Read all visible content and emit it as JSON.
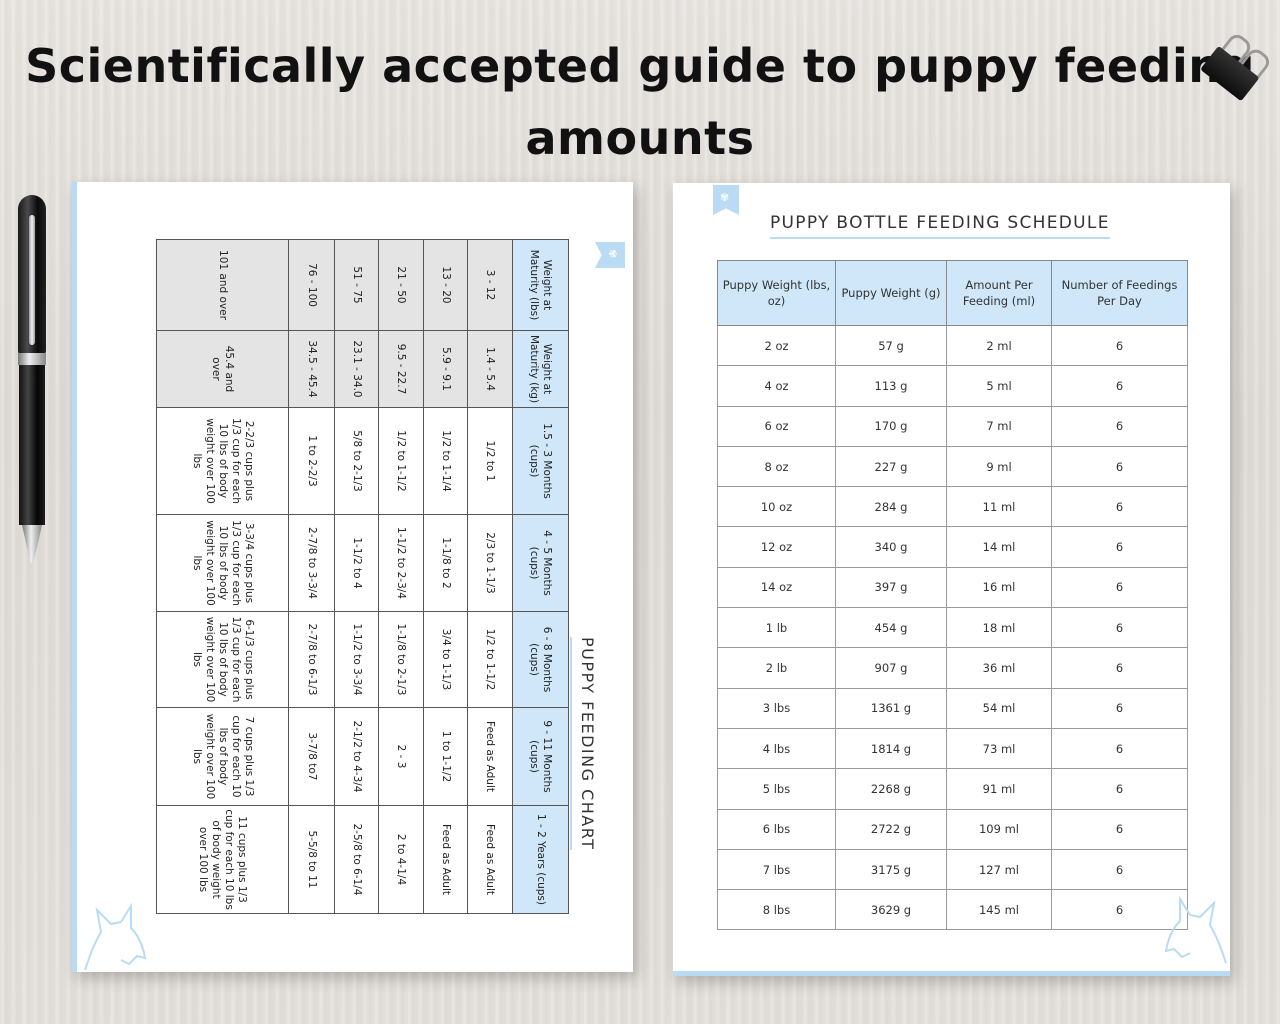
{
  "headline": "Scientifically accepted guide to puppy feeding amounts",
  "left_page": {
    "title": "PUPPY FEEDING CHART",
    "headers": [
      "Weight at Maturity (lbs)",
      "Weight at Maturity (kg)",
      "1.5 - 3 Months (cups)",
      "4 - 5 Months (cups)",
      "6 - 8 Months (cups)",
      "9 - 11 Months (cups)",
      "1 - 2 Years (cups)"
    ],
    "rows": [
      [
        "3 - 12",
        "1.4 - 5.4",
        "1/2 to 1",
        "2/3 to 1-1/3",
        "1/2 to 1-1/2",
        "Feed as Adult",
        "Feed as Adult"
      ],
      [
        "13 - 20",
        "5.9 - 9.1",
        "1/2 to 1-1/4",
        "1-1/8 to 2",
        "3/4 to 1-1/3",
        "1 to 1-1/2",
        "Feed as Adult"
      ],
      [
        "21 - 50",
        "9.5 - 22.7",
        "1/2 to 1-1/2",
        "1-1/2 to 2-3/4",
        "1-1/8 to 2-1/3",
        "2 - 3",
        "2 to 4-1/4"
      ],
      [
        "51 - 75",
        "23.1 - 34.0",
        "5/8 to 2-1/3",
        "1-1/2 to 4",
        "1-1/2 to 3-3/4",
        "2-1/2 to 4-3/4",
        "2-5/8 to 6-1/4"
      ],
      [
        "76 - 100",
        "34.5 - 45.4",
        "1 to 2-2/3",
        "2-7/8 to 3-3/4",
        "2-7/8 to 6-1/3",
        "3-7/8 to7",
        "5-5/8 to 11"
      ],
      [
        "101 and over",
        "45.4 and over",
        "2-2/3 cups plus 1/3 cup for each 10 lbs of body weight over 100 lbs",
        "3-3/4 cups plus 1/3 cup for each 10 lbs of body weight over 100 lbs",
        "6-1/3 cups plus 1/3 cup for each 10 lbs of body weight over 100 lbs",
        "7 cups plus 1/3 cup for each 10 lbs of body weight over 100 lbs",
        "11 cups plus 1/3 cup for each 10 lbs of body weight over 100 lbs"
      ]
    ]
  },
  "right_page": {
    "title": "PUPPY BOTTLE FEEDING SCHEDULE",
    "headers": [
      "Puppy Weight (lbs, oz)",
      "Puppy Weight (g)",
      "Amount Per Feeding (ml)",
      "Number of Feedings Per Day"
    ],
    "rows": [
      [
        "2 oz",
        "57 g",
        "2 ml",
        "6"
      ],
      [
        "4 oz",
        "113 g",
        "5 ml",
        "6"
      ],
      [
        "6 oz",
        "170 g",
        "7 ml",
        "6"
      ],
      [
        "8 oz",
        "227 g",
        "9 ml",
        "6"
      ],
      [
        "10 oz",
        "284 g",
        "11 ml",
        "6"
      ],
      [
        "12 oz",
        "340 g",
        "14 ml",
        "6"
      ],
      [
        "14 oz",
        "397 g",
        "16 ml",
        "6"
      ],
      [
        "1 lb",
        "454 g",
        "18 ml",
        "6"
      ],
      [
        "2 lb",
        "907 g",
        "36 ml",
        "6"
      ],
      [
        "3 lbs",
        "1361 g",
        "54 ml",
        "6"
      ],
      [
        "4 lbs",
        "1814 g",
        "73 ml",
        "6"
      ],
      [
        "5 lbs",
        "2268 g",
        "91 ml",
        "6"
      ],
      [
        "6 lbs",
        "2722 g",
        "109 ml",
        "6"
      ],
      [
        "7 lbs",
        "3175 g",
        "127 ml",
        "6"
      ],
      [
        "8 lbs",
        "3629 g",
        "145 ml",
        "6"
      ]
    ]
  },
  "colors": {
    "accent_blue": "#b9dcf4",
    "header_blue": "#cfe7f8",
    "grey_cell": "#e4e4e4"
  },
  "icons": [
    "pen-icon",
    "binder-clip-icon",
    "paw-bookmark-icon",
    "dog-outline-icon"
  ]
}
